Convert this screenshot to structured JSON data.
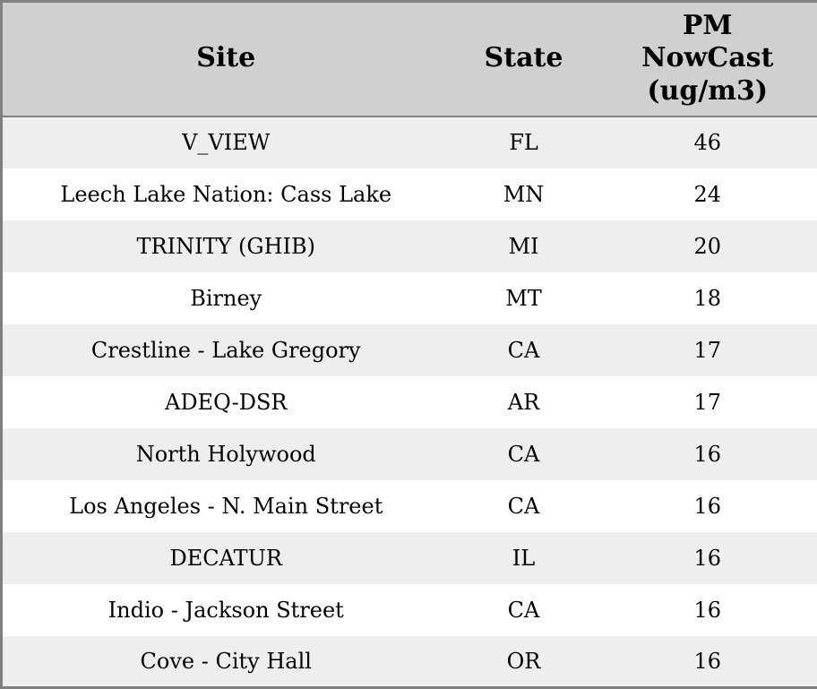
{
  "chart_data": {
    "type": "table",
    "columns": [
      "Site",
      "State",
      "PM NowCast (ug/m3)"
    ],
    "rows": [
      [
        "V_VIEW",
        "FL",
        46
      ],
      [
        "Leech Lake Nation: Cass Lake",
        "MN",
        24
      ],
      [
        "TRINITY (GHIB)",
        "MI",
        20
      ],
      [
        "Birney",
        "MT",
        18
      ],
      [
        "Crestline - Lake Gregory",
        "CA",
        17
      ],
      [
        "ADEQ-DSR",
        "AR",
        17
      ],
      [
        "North Holywood",
        "CA",
        16
      ],
      [
        "Los Angeles - N. Main Street",
        "CA",
        16
      ],
      [
        "DECATUR",
        "IL",
        16
      ],
      [
        "Indio - Jackson Street",
        "CA",
        16
      ],
      [
        "Cove - City Hall",
        "OR",
        16
      ]
    ],
    "layout_hints": {
      "striped": true,
      "stripe_starts_on_first_body_row": true
    }
  },
  "colors": {
    "header_bg": "#d0d0d0",
    "row_alt_bg": "#eeeeee",
    "row_bg": "#ffffff",
    "border": "#808080",
    "text": "#000000"
  }
}
